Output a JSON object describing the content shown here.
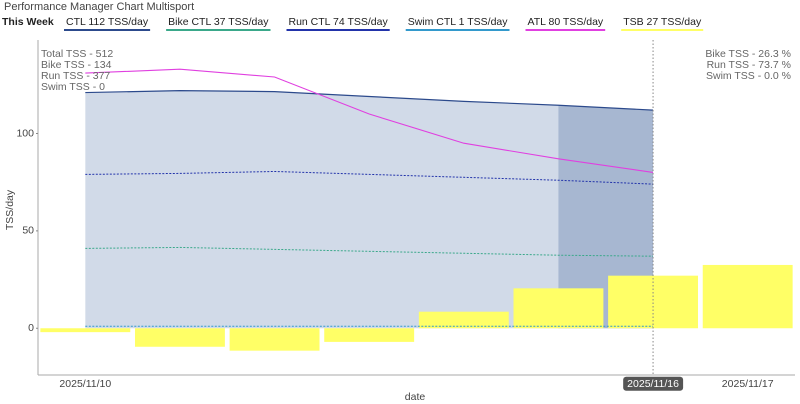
{
  "chart_data": {
    "type": "line",
    "title": "Performance Manager Chart Multisport",
    "legend_title": "This Week",
    "xlabel": "date",
    "ylabel": "TSS/day",
    "categories": [
      "2025/11/10",
      null,
      null,
      null,
      null,
      null,
      "2025/11/16",
      "2025/11/17"
    ],
    "ylim": [
      -24,
      148
    ],
    "yticks": [
      0,
      50,
      100
    ],
    "grid": false,
    "legend_position": "top",
    "series": [
      {
        "name": "CTL  112 TSS/day",
        "color": "#2c4a8c",
        "style": "area",
        "values": [
          121,
          122,
          121.5,
          119,
          116.5,
          114.5,
          112,
          null
        ]
      },
      {
        "name": "Bike CTL  37 TSS/day",
        "color": "#3aa88a",
        "style": "dashed",
        "values": [
          41,
          41.5,
          40.5,
          39.5,
          38.5,
          37.5,
          37,
          null
        ]
      },
      {
        "name": "Run CTL  74 TSS/day",
        "color": "#2233aa",
        "style": "dashed",
        "values": [
          79,
          79.5,
          80.5,
          79,
          77.5,
          76,
          74,
          null
        ]
      },
      {
        "name": "Swim CTL  1 TSS/day",
        "color": "#3399cc",
        "style": "dashed",
        "values": [
          1,
          1,
          1,
          1,
          1,
          1,
          1,
          null
        ]
      },
      {
        "name": "ATL  80 TSS/day",
        "color": "#e040e0",
        "style": "line",
        "values": [
          131,
          133,
          129,
          110,
          95,
          87,
          80,
          null
        ]
      },
      {
        "name": "TSB  27 TSS/day",
        "color": "#ffff66",
        "style": "bar",
        "values": [
          -2,
          -9.5,
          -11.5,
          -7,
          8.5,
          20.5,
          27,
          32.5
        ]
      }
    ],
    "annotations_left": [
      "Total TSS - 512",
      "Bike TSS - 134",
      "Run TSS - 377",
      "Swim TSS - 0"
    ],
    "annotations_right": [
      "Bike TSS - 26.3 %",
      "Run TSS - 73.7 %",
      "Swim TSS - 0.0 %"
    ]
  }
}
